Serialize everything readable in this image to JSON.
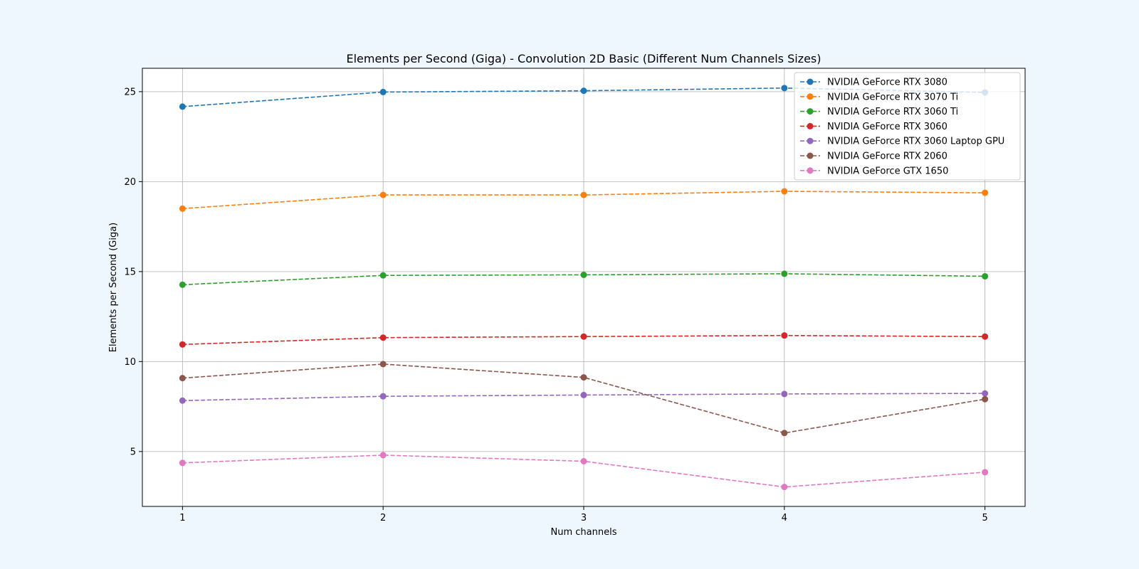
{
  "chart_data": {
    "type": "line",
    "title": "Elements per Second (Giga) - Convolution 2D Basic (Different Num Channels Sizes)",
    "xlabel": "Num channels",
    "ylabel": "Elements per Second (Giga)",
    "x": [
      1,
      2,
      3,
      4,
      5
    ],
    "xticks": [
      "1",
      "2",
      "3",
      "4",
      "5"
    ],
    "yticks": [
      "5",
      "10",
      "15",
      "20",
      "25"
    ],
    "xlim": [
      0.8,
      5.2
    ],
    "ylim": [
      1.95,
      26.3
    ],
    "grid": true,
    "legend_position": "top-right",
    "line_style": "dashed",
    "marker": "circle",
    "series": [
      {
        "name": "NVIDIA GeForce RTX 3080",
        "color": "#1f77b4",
        "values": [
          24.17,
          24.98,
          25.05,
          25.2,
          24.96
        ]
      },
      {
        "name": "NVIDIA GeForce RTX 3070 Ti",
        "color": "#ff7f0e",
        "values": [
          18.5,
          19.26,
          19.26,
          19.46,
          19.38
        ]
      },
      {
        "name": "NVIDIA GeForce RTX 3060 Ti",
        "color": "#2ca02c",
        "values": [
          14.27,
          14.79,
          14.82,
          14.88,
          14.74
        ]
      },
      {
        "name": "NVIDIA GeForce RTX 3060",
        "color": "#d62728",
        "values": [
          10.95,
          11.33,
          11.39,
          11.45,
          11.39
        ]
      },
      {
        "name": "NVIDIA GeForce RTX 3060 Laptop GPU",
        "color": "#9467bd",
        "values": [
          7.83,
          8.07,
          8.14,
          8.2,
          8.23
        ]
      },
      {
        "name": "NVIDIA GeForce RTX 2060",
        "color": "#8c564b",
        "values": [
          9.08,
          9.86,
          9.12,
          6.03,
          7.91
        ]
      },
      {
        "name": "NVIDIA GeForce GTX 1650",
        "color": "#e377c2",
        "values": [
          4.37,
          4.8,
          4.46,
          3.03,
          3.85
        ]
      }
    ]
  }
}
